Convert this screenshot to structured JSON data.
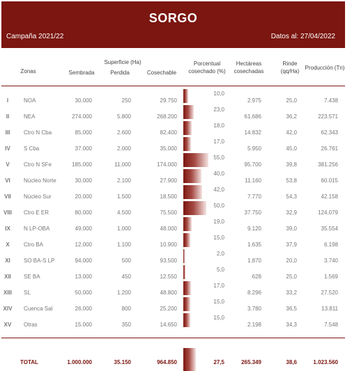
{
  "header": {
    "title": "SORGO",
    "campaign": "Campaña 2021/22",
    "date": "Datos al: 27/04/2022"
  },
  "columns": {
    "zonas": "Zonas",
    "superficie": "Superficie (Ha)",
    "sembrada": "Sembrada",
    "perdida": "Perdida",
    "cosechable": "Cosechable",
    "porcentual": "Porcentual cosechado (%)",
    "hectareas": "Hectáreas cosechadas",
    "rinde": "Rinde (qq/Ha)",
    "produccion": "Producción (Tn)"
  },
  "rows": [
    {
      "num": "I",
      "zona": "NOA",
      "sembrada": "30.000",
      "perdida": "250",
      "cosechable": "29.750",
      "pct": 10.0,
      "pct_label": "10,0",
      "hectareas": "2.975",
      "rinde": "25,0",
      "produccion": "7.438"
    },
    {
      "num": "II",
      "zona": "NEA",
      "sembrada": "274.000",
      "perdida": "5.800",
      "cosechable": "268.200",
      "pct": 23.0,
      "pct_label": "23,0",
      "hectareas": "61.686",
      "rinde": "36,2",
      "produccion": "223.571"
    },
    {
      "num": "III",
      "zona": "Ctro N Cba",
      "sembrada": "85.000",
      "perdida": "2.600",
      "cosechable": "82.400",
      "pct": 18.0,
      "pct_label": "18,0",
      "hectareas": "14.832",
      "rinde": "42,0",
      "produccion": "62.343"
    },
    {
      "num": "IV",
      "zona": "S Cba",
      "sembrada": "37.000",
      "perdida": "2.000",
      "cosechable": "35.000",
      "pct": 17.0,
      "pct_label": "17,0",
      "hectareas": "5.950",
      "rinde": "45,0",
      "produccion": "26.761"
    },
    {
      "num": "V",
      "zona": "Ctro N SFe",
      "sembrada": "185.000",
      "perdida": "11.000",
      "cosechable": "174.000",
      "pct": 55.0,
      "pct_label": "55,0",
      "hectareas": "95.700",
      "rinde": "39,8",
      "produccion": "381.256"
    },
    {
      "num": "VI",
      "zona": "Núcleo Norte",
      "sembrada": "30.000",
      "perdida": "2.100",
      "cosechable": "27.900",
      "pct": 40.0,
      "pct_label": "40,0",
      "hectareas": "11.160",
      "rinde": "53,8",
      "produccion": "60.015"
    },
    {
      "num": "VII",
      "zona": "Núcleo Sur",
      "sembrada": "20.000",
      "perdida": "1.500",
      "cosechable": "18.500",
      "pct": 42.0,
      "pct_label": "42,0",
      "hectareas": "7.770",
      "rinde": "54,3",
      "produccion": "42.158"
    },
    {
      "num": "VIII",
      "zona": "Ctro E ER",
      "sembrada": "80.000",
      "perdida": "4.500",
      "cosechable": "75.500",
      "pct": 50.0,
      "pct_label": "50,0",
      "hectareas": "37.750",
      "rinde": "32,9",
      "produccion": "124.079"
    },
    {
      "num": "IX",
      "zona": "N LP-OBA",
      "sembrada": "49.000",
      "perdida": "1.000",
      "cosechable": "48.000",
      "pct": 19.0,
      "pct_label": "19,0",
      "hectareas": "9.120",
      "rinde": "39,0",
      "produccion": "35.554"
    },
    {
      "num": "X",
      "zona": "Ctro BA",
      "sembrada": "12.000",
      "perdida": "1.100",
      "cosechable": "10.900",
      "pct": 15.0,
      "pct_label": "15,0",
      "hectareas": "1.635",
      "rinde": "37,9",
      "produccion": "6.198"
    },
    {
      "num": "XI",
      "zona": "SO BA-S LP",
      "sembrada": "94.000",
      "perdida": "500",
      "cosechable": "93.500",
      "pct": 2.0,
      "pct_label": "2,0",
      "hectareas": "1.870",
      "rinde": "20,0",
      "produccion": "3.740"
    },
    {
      "num": "XII",
      "zona": "SE BA",
      "sembrada": "13.000",
      "perdida": "450",
      "cosechable": "12.550",
      "pct": 5.0,
      "pct_label": "5,0",
      "hectareas": "628",
      "rinde": "25,0",
      "produccion": "1.569"
    },
    {
      "num": "XIII",
      "zona": "SL",
      "sembrada": "50.000",
      "perdida": "1.200",
      "cosechable": "48.800",
      "pct": 17.0,
      "pct_label": "17,0",
      "hectareas": "8.296",
      "rinde": "33,2",
      "produccion": "27.520"
    },
    {
      "num": "XIV",
      "zona": "Cuenca Sal",
      "sembrada": "26.000",
      "perdida": "800",
      "cosechable": "25.200",
      "pct": 15.0,
      "pct_label": "15,0",
      "hectareas": "3.780",
      "rinde": "36,5",
      "produccion": "13.811"
    },
    {
      "num": "XV",
      "zona": "Otras",
      "sembrada": "15.000",
      "perdida": "350",
      "cosechable": "14.650",
      "pct": 15.0,
      "pct_label": "15,0",
      "hectareas": "2.198",
      "rinde": "34,3",
      "produccion": "7.548"
    }
  ],
  "total": {
    "label": "TOTAL",
    "sembrada": "1.000.000",
    "perdida": "35.150",
    "cosechable": "964.850",
    "pct": 27.5,
    "pct_label": "27,5",
    "hectareas": "265.349",
    "rinde": "38,6",
    "produccion": "1.023.560"
  },
  "colors": {
    "header_bg": "#7b1610",
    "accent": "#7b1610"
  }
}
